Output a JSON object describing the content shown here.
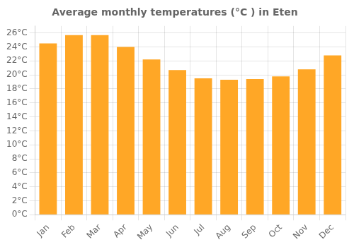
{
  "chart_data": {
    "type": "bar",
    "title": "Average monthly temperatures (°C ) in Eten",
    "categories": [
      "Jan",
      "Feb",
      "Mar",
      "Apr",
      "May",
      "Jun",
      "Jul",
      "Aug",
      "Sep",
      "Oct",
      "Nov",
      "Dec"
    ],
    "values": [
      24.5,
      25.7,
      25.7,
      24.0,
      22.2,
      20.7,
      19.5,
      19.3,
      19.4,
      19.8,
      20.8,
      22.8
    ],
    "color": "#FFA726",
    "ylim": [
      0,
      27
    ],
    "yticks": [
      {
        "value": 0,
        "label": "0°C"
      },
      {
        "value": 2,
        "label": "2°C"
      },
      {
        "value": 4,
        "label": "4°C"
      },
      {
        "value": 6,
        "label": "6°C"
      },
      {
        "value": 8,
        "label": "8°C"
      },
      {
        "value": 10,
        "label": "10°C"
      },
      {
        "value": 12,
        "label": "12°C"
      },
      {
        "value": 14,
        "label": "14°C"
      },
      {
        "value": 16,
        "label": "16°C"
      },
      {
        "value": 18,
        "label": "18°C"
      },
      {
        "value": 20,
        "label": "20°C"
      },
      {
        "value": 22,
        "label": "22°C"
      },
      {
        "value": 24,
        "label": "24°C"
      },
      {
        "value": 26,
        "label": "26°C"
      }
    ],
    "grid": true
  }
}
